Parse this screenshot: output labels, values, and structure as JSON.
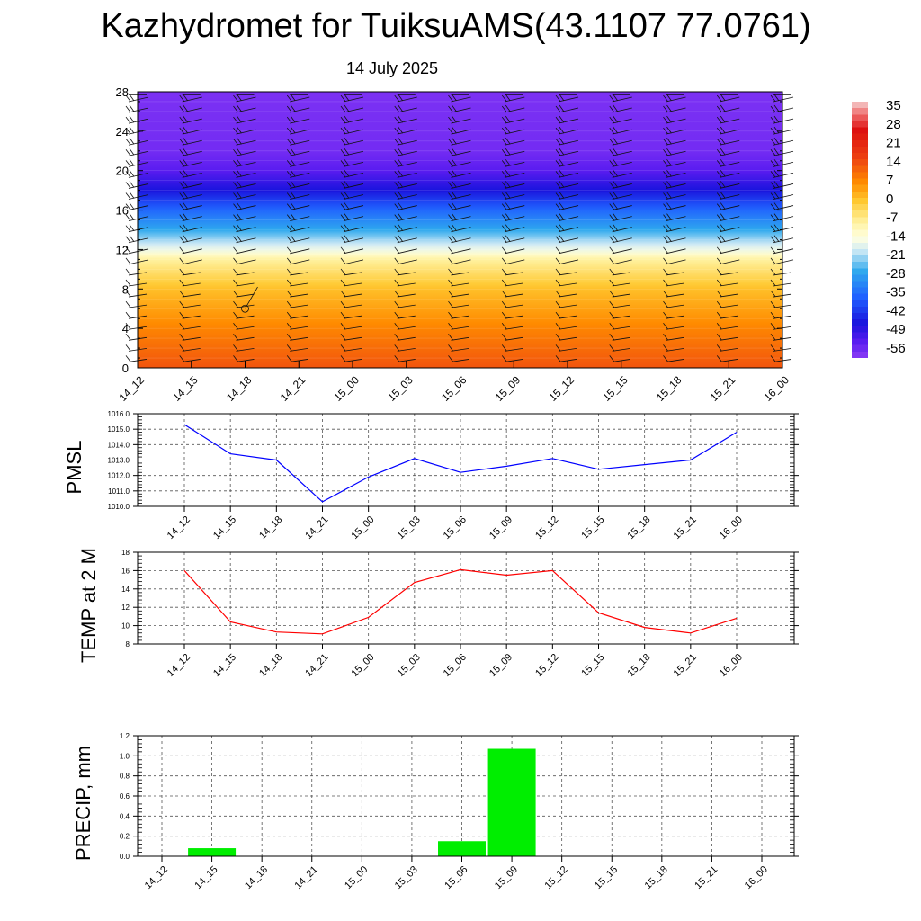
{
  "header": {
    "title": "Kazhydromet for TuiksuAMS(43.1107 77.0761)",
    "subtitle": "14 July 2025"
  },
  "chart_data": [
    {
      "type": "heatmap",
      "id": "cross_section",
      "x": [
        "14_12",
        "14_15",
        "14_18",
        "14_21",
        "15_00",
        "15_03",
        "15_06",
        "15_09",
        "15_12",
        "15_15",
        "15_18",
        "15_21",
        "16_00"
      ],
      "ylim": [
        0,
        28
      ],
      "yticks": [
        "0",
        "4",
        "8",
        "12",
        "16",
        "20",
        "24",
        "28"
      ],
      "colorbar": {
        "labels": [
          "35",
          "28",
          "21",
          "14",
          "7",
          "0",
          "-7",
          "-14",
          "-21",
          "-28",
          "-35",
          "-42",
          "-49",
          "-56"
        ],
        "stops": [
          {
            "v": 38,
            "c": "#f5cfcf"
          },
          {
            "v": 33,
            "c": "#ee6a6a"
          },
          {
            "v": 27,
            "c": "#dd1010"
          },
          {
            "v": 16,
            "c": "#ee4411"
          },
          {
            "v": 7,
            "c": "#ff8c00"
          },
          {
            "v": 0,
            "c": "#ffc830"
          },
          {
            "v": -8,
            "c": "#fff2a0"
          },
          {
            "v": -14,
            "c": "#ffffe0"
          },
          {
            "v": -19,
            "c": "#cfeaf5"
          },
          {
            "v": -27,
            "c": "#2ea8ee"
          },
          {
            "v": -37,
            "c": "#2060ff"
          },
          {
            "v": -47,
            "c": "#1a14dd"
          },
          {
            "v": -54,
            "c": "#5a1cf0"
          },
          {
            "v": -60,
            "c": "#8c3cf5"
          }
        ]
      },
      "temperature_profile": [
        {
          "y": 0,
          "v": 14
        },
        {
          "y": 4,
          "v": 8
        },
        {
          "y": 8,
          "v": 1
        },
        {
          "y": 11,
          "v": -8
        },
        {
          "y": 12,
          "v": -16
        },
        {
          "y": 14,
          "v": -27
        },
        {
          "y": 16,
          "v": -36
        },
        {
          "y": 18,
          "v": -47
        },
        {
          "y": 20,
          "v": -54
        },
        {
          "y": 22,
          "v": -57
        },
        {
          "y": 28,
          "v": -58
        }
      ],
      "wind_barbs": true
    },
    {
      "type": "line",
      "id": "pmsl",
      "ylabel": "PMSL",
      "x": [
        "14_12",
        "14_15",
        "14_18",
        "14_21",
        "15_00",
        "15_03",
        "15_06",
        "15_09",
        "15_12",
        "15_15",
        "15_18",
        "15_21",
        "16_00"
      ],
      "values": [
        1015.3,
        1013.4,
        1013.0,
        1010.3,
        1011.9,
        1013.1,
        1012.2,
        1012.6,
        1013.1,
        1012.4,
        1012.7,
        1013.0,
        1014.8
      ],
      "ylim": [
        1010.0,
        1016.0
      ],
      "yticks": [
        "1010.0",
        "1011.0",
        "1012.0",
        "1013.0",
        "1014.0",
        "1015.0",
        "1016.0"
      ],
      "color": "#0000ff",
      "grid": true
    },
    {
      "type": "line",
      "id": "temp",
      "ylabel": "TEMP at 2 M",
      "x": [
        "14_12",
        "14_15",
        "14_18",
        "14_21",
        "15_00",
        "15_03",
        "15_06",
        "15_09",
        "15_12",
        "15_15",
        "15_18",
        "15_21",
        "16_00"
      ],
      "values": [
        16.0,
        10.4,
        9.3,
        9.1,
        10.9,
        14.7,
        16.1,
        15.5,
        16.0,
        11.4,
        9.8,
        9.2,
        10.8
      ],
      "ylim": [
        8,
        18
      ],
      "yticks": [
        "8",
        "10",
        "12",
        "14",
        "16",
        "18"
      ],
      "color": "#ff0000",
      "grid": true
    },
    {
      "type": "bar",
      "id": "precip",
      "ylabel": "PRECIP, mm",
      "categories": [
        "14_12",
        "14_15",
        "14_18",
        "14_21",
        "15_00",
        "15_03",
        "15_06",
        "15_09",
        "15_12",
        "15_15",
        "15_18",
        "15_21",
        "16_00"
      ],
      "values": [
        0,
        0.08,
        0,
        0,
        0,
        0,
        0.15,
        1.07,
        0,
        0,
        0,
        0,
        0
      ],
      "ylim": [
        0,
        1.2
      ],
      "yticks": [
        "0.0",
        "0.2",
        "0.4",
        "0.6",
        "0.8",
        "1.0",
        "1.2"
      ],
      "color": "#00ee00",
      "grid": true
    }
  ]
}
